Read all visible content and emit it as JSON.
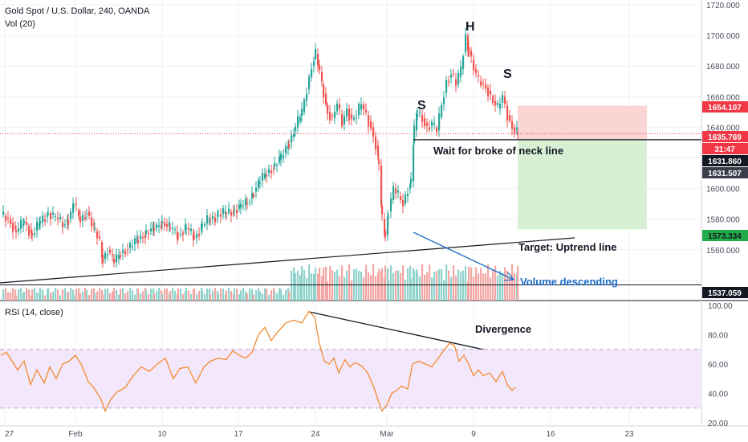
{
  "header": {
    "symbol_title": "Gold Spot / U.S. Dollar, 240, OANDA",
    "volume_label": "Vol (20)",
    "rsi_label": "RSI (14, close)"
  },
  "colors": {
    "up": "#26a69a",
    "down": "#ef5350",
    "up_volume": "#8fd3cc",
    "down_volume": "#f4a6a4",
    "rsi_line": "#f28b30",
    "rsi_band": "#f3e7fb",
    "annotation_blue": "#1e6fc8",
    "target_zone": "#d7f0d4",
    "stop_zone": "#fbd4d4",
    "price_tag_red": "#f23645",
    "price_tag_green": "#22ab4a",
    "price_tag_dark": "#131722"
  },
  "chart_data": [
    {
      "type": "candlestick",
      "title": "Gold Spot / U.S. Dollar, 240, OANDA",
      "x_ticks": [
        "27",
        "Feb",
        "10",
        "17",
        "24",
        "Mar",
        "9",
        "16",
        "23"
      ],
      "y_ticks": [
        "1720.000",
        "1700.000",
        "1680.000",
        "1660.000",
        "1640.000",
        "1600.000",
        "1580.000",
        "1560.000"
      ],
      "ylim": [
        1533,
        1721
      ],
      "price_tags": [
        {
          "value": "1654.107",
          "style": "red"
        },
        {
          "value": "1635.769",
          "style": "red"
        },
        {
          "value": "31:47",
          "style": "red"
        },
        {
          "value": "1631.860",
          "style": "dark"
        },
        {
          "value": "1631.507",
          "style": "gray"
        },
        {
          "value": "1573.334",
          "style": "green"
        },
        {
          "value": "1537.059",
          "style": "dark"
        }
      ],
      "close_points": [
        [
          1,
          1583
        ],
        [
          10,
          1580
        ],
        [
          20,
          1572
        ],
        [
          30,
          1578
        ],
        [
          40,
          1570
        ],
        [
          50,
          1578
        ],
        [
          60,
          1584
        ],
        [
          72,
          1580
        ],
        [
          78,
          1576
        ],
        [
          85,
          1580
        ],
        [
          92,
          1590
        ],
        [
          100,
          1579
        ],
        [
          108,
          1585
        ],
        [
          118,
          1572
        ],
        [
          124,
          1565
        ],
        [
          128,
          1554
        ],
        [
          134,
          1560
        ],
        [
          142,
          1552
        ],
        [
          150,
          1558
        ],
        [
          162,
          1562
        ],
        [
          172,
          1567
        ],
        [
          182,
          1571
        ],
        [
          192,
          1574
        ],
        [
          202,
          1578
        ],
        [
          212,
          1574
        ],
        [
          222,
          1570
        ],
        [
          232,
          1574
        ],
        [
          242,
          1568
        ],
        [
          252,
          1576
        ],
        [
          262,
          1580
        ],
        [
          272,
          1583
        ],
        [
          282,
          1584
        ],
        [
          292,
          1586
        ],
        [
          300,
          1588
        ],
        [
          308,
          1591
        ],
        [
          316,
          1598
        ],
        [
          324,
          1605
        ],
        [
          332,
          1610
        ],
        [
          342,
          1615
        ],
        [
          350,
          1620
        ],
        [
          360,
          1630
        ],
        [
          368,
          1640
        ],
        [
          376,
          1650
        ],
        [
          382,
          1665
        ],
        [
          388,
          1680
        ],
        [
          393,
          1688
        ],
        [
          398,
          1676
        ],
        [
          403,
          1662
        ],
        [
          408,
          1650
        ],
        [
          414,
          1646
        ],
        [
          420,
          1655
        ],
        [
          426,
          1642
        ],
        [
          432,
          1652
        ],
        [
          438,
          1645
        ],
        [
          444,
          1648
        ],
        [
          450,
          1655
        ],
        [
          456,
          1648
        ],
        [
          462,
          1640
        ],
        [
          468,
          1628
        ],
        [
          472,
          1615
        ],
        [
          476,
          1580
        ],
        [
          480,
          1570
        ],
        [
          484,
          1585
        ],
        [
          490,
          1600
        ],
        [
          496,
          1595
        ],
        [
          502,
          1590
        ],
        [
          508,
          1600
        ],
        [
          512,
          1605
        ],
        [
          516,
          1638
        ],
        [
          520,
          1650
        ],
        [
          526,
          1646
        ],
        [
          532,
          1640
        ],
        [
          538,
          1642
        ],
        [
          544,
          1638
        ],
        [
          550,
          1655
        ],
        [
          556,
          1670
        ],
        [
          562,
          1675
        ],
        [
          568,
          1668
        ],
        [
          574,
          1678
        ],
        [
          580,
          1700
        ],
        [
          584,
          1690
        ],
        [
          590,
          1678
        ],
        [
          596,
          1670
        ],
        [
          602,
          1668
        ],
        [
          608,
          1664
        ],
        [
          614,
          1657
        ],
        [
          620,
          1652
        ],
        [
          626,
          1660
        ],
        [
          632,
          1648
        ],
        [
          638,
          1640
        ],
        [
          645,
          1636
        ]
      ],
      "rsi": {
        "label": "RSI (14, close)",
        "y_ticks": [
          "100.00",
          "80.00",
          "60.00",
          "40.00",
          "20.00"
        ],
        "ylim": [
          20,
          100
        ],
        "band": [
          30,
          70
        ],
        "points": [
          [
            1,
            66
          ],
          [
            8,
            68
          ],
          [
            15,
            62
          ],
          [
            22,
            56
          ],
          [
            30,
            62
          ],
          [
            38,
            46
          ],
          [
            46,
            56
          ],
          [
            55,
            47
          ],
          [
            62,
            58
          ],
          [
            70,
            50
          ],
          [
            78,
            60
          ],
          [
            86,
            62
          ],
          [
            94,
            66
          ],
          [
            102,
            59
          ],
          [
            110,
            48
          ],
          [
            118,
            43
          ],
          [
            126,
            36
          ],
          [
            131,
            28
          ],
          [
            138,
            36
          ],
          [
            146,
            41
          ],
          [
            156,
            44
          ],
          [
            166,
            52
          ],
          [
            176,
            58
          ],
          [
            186,
            55
          ],
          [
            196,
            60
          ],
          [
            206,
            64
          ],
          [
            216,
            50
          ],
          [
            224,
            57
          ],
          [
            234,
            58
          ],
          [
            244,
            47
          ],
          [
            254,
            58
          ],
          [
            262,
            62
          ],
          [
            272,
            64
          ],
          [
            282,
            63
          ],
          [
            290,
            69
          ],
          [
            298,
            66
          ],
          [
            306,
            64
          ],
          [
            314,
            68
          ],
          [
            322,
            80
          ],
          [
            330,
            85
          ],
          [
            338,
            76
          ],
          [
            346,
            82
          ],
          [
            356,
            88
          ],
          [
            366,
            90
          ],
          [
            376,
            88
          ],
          [
            385,
            96
          ],
          [
            392,
            92
          ],
          [
            398,
            74
          ],
          [
            404,
            62
          ],
          [
            410,
            60
          ],
          [
            416,
            64
          ],
          [
            422,
            54
          ],
          [
            430,
            63
          ],
          [
            436,
            58
          ],
          [
            442,
            61
          ],
          [
            450,
            59
          ],
          [
            458,
            54
          ],
          [
            466,
            44
          ],
          [
            472,
            34
          ],
          [
            476,
            28
          ],
          [
            482,
            32
          ],
          [
            488,
            40
          ],
          [
            494,
            42
          ],
          [
            500,
            45
          ],
          [
            508,
            43
          ],
          [
            514,
            60
          ],
          [
            522,
            62
          ],
          [
            530,
            60
          ],
          [
            538,
            58
          ],
          [
            546,
            64
          ],
          [
            554,
            70
          ],
          [
            560,
            74
          ],
          [
            566,
            73
          ],
          [
            572,
            62
          ],
          [
            578,
            66
          ],
          [
            584,
            60
          ],
          [
            590,
            52
          ],
          [
            596,
            56
          ],
          [
            602,
            52
          ],
          [
            610,
            54
          ],
          [
            618,
            48
          ],
          [
            626,
            55
          ],
          [
            632,
            46
          ],
          [
            638,
            42
          ],
          [
            642,
            44
          ]
        ]
      },
      "annotations": {
        "left_shoulder": "S",
        "head": "H",
        "right_shoulder": "S",
        "neckline_note": "Wait for broke of neck line",
        "target_note": "Target: Uptrend line",
        "volume_note": "Volume descending",
        "divergence_note": "Divergence"
      }
    }
  ]
}
